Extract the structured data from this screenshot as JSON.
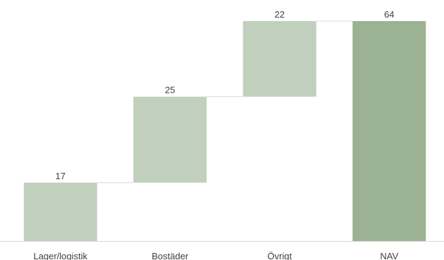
{
  "chart_data": {
    "type": "bar",
    "subtype": "waterfall",
    "categories": [
      "Lager/logistik",
      "Bostäder",
      "Övrigt",
      "NAV"
    ],
    "values": [
      17,
      25,
      22,
      64
    ],
    "data_labels": [
      "17",
      "25",
      "22",
      "64"
    ],
    "is_total": [
      false,
      false,
      false,
      true
    ],
    "ylim": [
      0,
      64
    ],
    "grid": false,
    "legend": "none",
    "colors": {
      "increment": "#c1d0bc",
      "total": "#9bb393",
      "connector": "#d9d9d9",
      "axis": "#d9d9d9",
      "text": "#404040"
    }
  }
}
